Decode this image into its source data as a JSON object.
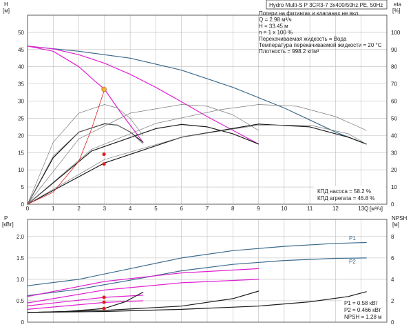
{
  "header": {
    "title": "Hydro Multi-S P 3CR3-7 3x400/50hz,PE, 50Hz"
  },
  "info_lines": [
    "Потери на фитингах и клапанах не вкл.",
    "Q = 2.98 м³/ч",
    "H = 33.45 м",
    "n = 1 x 100 %",
    "Перекачиваемая жидкость = Вода",
    "Температура перекачиваемой жидкости = 20 °C",
    "Плотность = 998.2 кг/м³"
  ],
  "top_legend": [
    "КПД насоса = 58.2 %",
    "КПД агрегата = 46.8 %"
  ],
  "bottom_legend": [
    "P1 = 0.58 кВт",
    "P2 = 0.466 кВт",
    "NPSH = 1.28 м"
  ],
  "colors": {
    "blue": "#3b6a8c",
    "magenta": "#e020d0",
    "black": "#1a1a1a",
    "gray": "#7a7a7a",
    "red": "#e02020",
    "orange": "#f7b040"
  },
  "chart_data": [
    {
      "type": "line",
      "title": "",
      "xlabel": "Q [м³/ч]",
      "ylabel": "H [м]",
      "y2label": "eta [%]",
      "xlim": [
        0,
        14
      ],
      "ylim": [
        0,
        55
      ],
      "y2lim": [
        0,
        110
      ],
      "xticks": [
        0,
        1,
        2,
        3,
        4,
        5,
        6,
        7,
        8,
        9,
        10,
        11,
        12,
        13
      ],
      "yticks": [
        0,
        5,
        10,
        15,
        20,
        25,
        30,
        35,
        40,
        45,
        50
      ],
      "y2ticks": [
        0,
        10,
        20,
        30,
        40,
        50,
        60,
        70,
        80,
        90,
        100
      ],
      "y_axis_labels": {
        "y": "H",
        "y_unit": "[м]",
        "y2": "eta",
        "y2_unit": "[%]",
        "x": "Q",
        "x_unit": "[м³/ч]"
      },
      "grid": true,
      "series": [
        {
          "color": "blue",
          "axis": "y",
          "x": [
            0,
            2,
            4,
            6,
            8,
            10,
            11,
            12,
            13.2
          ],
          "y": [
            46,
            44.5,
            42.5,
            39,
            34,
            28,
            24.5,
            21,
            17.5
          ]
        },
        {
          "color": "magenta",
          "axis": "y",
          "x": [
            0,
            1,
            2,
            3,
            4,
            5,
            6,
            7,
            8,
            9
          ],
          "y": [
            46,
            45.2,
            43.5,
            41,
            37.8,
            34,
            29.8,
            25.5,
            21.5,
            17.5
          ]
        },
        {
          "color": "magenta",
          "axis": "y",
          "x": [
            0,
            1,
            2,
            2.6,
            3.0,
            3.6,
            4.0,
            4.5
          ],
          "y": [
            46,
            44.5,
            40,
            36,
            33.45,
            27,
            23,
            18
          ]
        },
        {
          "color": "black",
          "axis": "y",
          "x": [
            0,
            2.5,
            5,
            6,
            7,
            8,
            9
          ],
          "y": [
            0,
            15.5,
            22,
            23.2,
            22.5,
            20.5,
            17.5
          ]
        },
        {
          "color": "black",
          "axis": "y",
          "x": [
            0,
            1,
            2,
            3,
            3.5,
            4,
            4.5
          ],
          "y": [
            0,
            13.5,
            21,
            23.4,
            23,
            21,
            18
          ]
        },
        {
          "color": "black",
          "axis": "y",
          "x": [
            0,
            3,
            6,
            9,
            11,
            12.5,
            13.2
          ],
          "y": [
            0,
            12,
            19.5,
            23.3,
            22.5,
            19.5,
            17.5
          ]
        },
        {
          "color": "gray",
          "axis": "y2",
          "x": [
            0,
            1,
            2,
            3,
            3.5,
            4,
            4.5
          ],
          "y": [
            0,
            36,
            53,
            58,
            56,
            50,
            40
          ]
        },
        {
          "color": "gray",
          "axis": "y2",
          "x": [
            0,
            2,
            4,
            6,
            7,
            8,
            9
          ],
          "y": [
            0,
            38,
            53,
            58,
            57,
            52,
            43
          ]
        },
        {
          "color": "gray",
          "axis": "y2",
          "x": [
            0,
            2.5,
            5,
            7.5,
            9,
            10.5,
            12,
            13.2
          ],
          "y": [
            0,
            32,
            47,
            55,
            58,
            57,
            51,
            43
          ]
        },
        {
          "color": "gray",
          "axis": "y2",
          "x": [
            0,
            1,
            2,
            3,
            3.5,
            4,
            4.5
          ],
          "y": [
            0,
            28,
            42,
            47,
            46,
            42,
            35
          ]
        },
        {
          "color": "gray",
          "axis": "y2",
          "x": [
            0,
            3,
            6,
            9,
            11,
            12.5,
            13.2
          ],
          "y": [
            0,
            26,
            39,
            46,
            46,
            41,
            35
          ]
        },
        {
          "color": "red",
          "axis": "y",
          "x": [
            0,
            1,
            2,
            2.5,
            3.0
          ],
          "y": [
            0,
            3.5,
            12.5,
            22,
            33.45
          ]
        }
      ],
      "points": [
        {
          "x": 2.98,
          "y": 33.45,
          "color": "orange",
          "axis": "y"
        },
        {
          "x": 2.98,
          "y": 29.1,
          "color": "red",
          "axis": "y2"
        },
        {
          "x": 2.98,
          "y": 23.4,
          "color": "red",
          "axis": "y2"
        }
      ]
    },
    {
      "type": "line",
      "title": "",
      "xlabel": "",
      "ylabel": "P [кВт]",
      "y2label": "NPSH [м]",
      "xlim": [
        0,
        14
      ],
      "ylim": [
        0,
        2.4
      ],
      "y2lim": [
        0,
        9.6
      ],
      "yticks": [
        0,
        0.5,
        1.0,
        1.5,
        2.0
      ],
      "ytick_labels": [
        "0",
        "0.5",
        "1.0",
        "1.5",
        "2.0"
      ],
      "y2ticks": [
        0,
        2,
        4,
        6,
        8
      ],
      "y_axis_labels": {
        "y": "P",
        "y_unit": "[кВт]",
        "y2": "NPSH",
        "y2_unit": "[м]"
      },
      "grid": true,
      "series": [
        {
          "name": "P1",
          "color": "blue",
          "axis": "y",
          "x": [
            0,
            2,
            4,
            6,
            8,
            10,
            12,
            13.2
          ],
          "y": [
            0.85,
            1.0,
            1.25,
            1.5,
            1.67,
            1.77,
            1.84,
            1.86
          ]
        },
        {
          "name": "P2",
          "color": "blue",
          "axis": "y",
          "x": [
            0,
            2,
            4,
            6,
            8,
            10,
            12,
            13.2
          ],
          "y": [
            0.62,
            0.77,
            0.98,
            1.2,
            1.35,
            1.44,
            1.49,
            1.5
          ]
        },
        {
          "color": "magenta",
          "axis": "y",
          "x": [
            0,
            3,
            6,
            9
          ],
          "y": [
            0.6,
            0.95,
            1.15,
            1.25
          ]
        },
        {
          "color": "magenta",
          "axis": "y",
          "x": [
            0,
            3,
            6,
            9
          ],
          "y": [
            0.45,
            0.75,
            0.92,
            1.0
          ]
        },
        {
          "color": "magenta",
          "axis": "y",
          "x": [
            0,
            1.5,
            3,
            4.5
          ],
          "y": [
            0.38,
            0.48,
            0.58,
            0.63
          ]
        },
        {
          "color": "magenta",
          "axis": "y",
          "x": [
            0,
            1.5,
            3,
            4.5
          ],
          "y": [
            0.3,
            0.38,
            0.46,
            0.5
          ]
        },
        {
          "color": "black",
          "axis": "y2",
          "x": [
            0,
            1.5,
            3,
            3.8,
            4.5
          ],
          "y": [
            0.9,
            1.0,
            1.28,
            1.9,
            2.8
          ]
        },
        {
          "color": "black",
          "axis": "y2",
          "x": [
            0,
            3,
            6,
            8,
            9
          ],
          "y": [
            0.9,
            1.1,
            1.5,
            2.2,
            2.9
          ]
        },
        {
          "color": "black",
          "axis": "y2",
          "x": [
            0,
            3,
            6,
            9,
            11,
            12.5,
            13.2
          ],
          "y": [
            0.9,
            1.0,
            1.2,
            1.5,
            1.9,
            2.4,
            2.85
          ]
        }
      ],
      "points": [
        {
          "x": 2.98,
          "y": 0.58,
          "color": "red",
          "axis": "y"
        },
        {
          "x": 2.98,
          "y": 0.466,
          "color": "red",
          "axis": "y"
        },
        {
          "x": 2.98,
          "y": 1.28,
          "color": "red",
          "axis": "y2"
        }
      ]
    }
  ]
}
